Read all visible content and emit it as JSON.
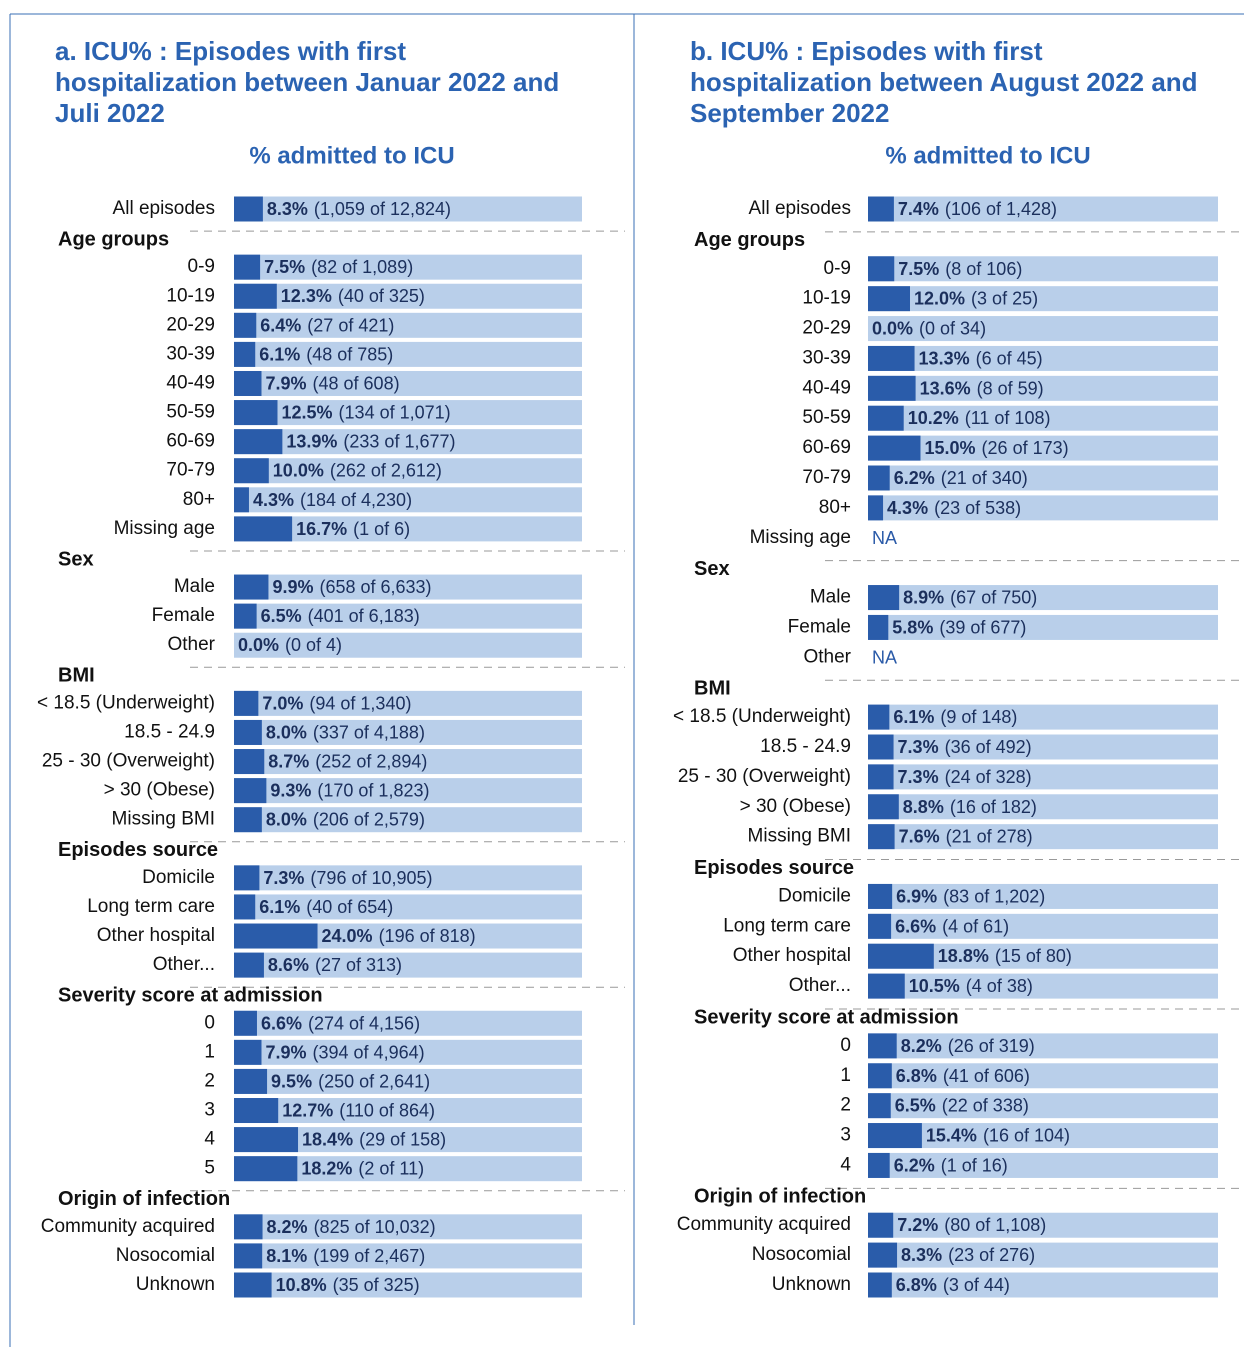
{
  "chart_data": [
    {
      "type": "bar",
      "title": "a. ICU% : Episodes with first hospitalization between Januar 2022 and Juli 2022",
      "axis_label": "% admitted to  ICU",
      "xlim": [
        0,
        100
      ],
      "color": "#2a5caa",
      "track_color": "#b9cfea",
      "groups": [
        {
          "categories": [
            "All episodes"
          ],
          "values": [
            8.3
          ],
          "value_labels": [
            "8.3%"
          ],
          "counts": [
            "(1,059 of 12,824)"
          ]
        },
        {
          "name": "Age groups",
          "categories": [
            "0-9",
            "10-19",
            "20-29",
            "30-39",
            "40-49",
            "50-59",
            "60-69",
            "70-79",
            "80+",
            "Missing age"
          ],
          "values": [
            7.5,
            12.3,
            6.4,
            6.1,
            7.9,
            12.5,
            13.9,
            10.0,
            4.3,
            16.7
          ],
          "value_labels": [
            "7.5%",
            "12.3%",
            "6.4%",
            "6.1%",
            "7.9%",
            "12.5%",
            "13.9%",
            "10.0%",
            "4.3%",
            "16.7%"
          ],
          "counts": [
            "(82 of 1,089)",
            "(40 of 325)",
            "(27 of 421)",
            "(48 of 785)",
            "(48 of 608)",
            "(134 of 1,071)",
            "(233 of 1,677)",
            "(262 of 2,612)",
            "(184 of 4,230)",
            "(1 of 6)"
          ]
        },
        {
          "name": "Sex",
          "categories": [
            "Male",
            "Female",
            "Other"
          ],
          "values": [
            9.9,
            6.5,
            0.0
          ],
          "value_labels": [
            "9.9%",
            "6.5%",
            "0.0%"
          ],
          "counts": [
            "(658 of 6,633)",
            "(401 of 6,183)",
            "(0 of 4)"
          ]
        },
        {
          "name": "BMI",
          "categories": [
            "< 18.5 (Underweight)",
            "18.5 - 24.9",
            "25 - 30 (Overweight)",
            "> 30 (Obese)",
            "Missing BMI"
          ],
          "values": [
            7.0,
            8.0,
            8.7,
            9.3,
            8.0
          ],
          "value_labels": [
            "7.0%",
            "8.0%",
            "8.7%",
            "9.3%",
            "8.0%"
          ],
          "counts": [
            "(94 of 1,340)",
            "(337 of 4,188)",
            "(252 of 2,894)",
            "(170 of 1,823)",
            "(206 of 2,579)"
          ]
        },
        {
          "name": "Episodes source",
          "categories": [
            "Domicile",
            "Long term care",
            "Other hospital",
            "Other..."
          ],
          "values": [
            7.3,
            6.1,
            24.0,
            8.6
          ],
          "value_labels": [
            "7.3%",
            "6.1%",
            "24.0%",
            "8.6%"
          ],
          "counts": [
            "(796 of 10,905)",
            "(40 of 654)",
            "(196 of 818)",
            "(27 of 313)"
          ]
        },
        {
          "name": "Severity score at admission",
          "categories": [
            "0",
            "1",
            "2",
            "3",
            "4",
            "5"
          ],
          "values": [
            6.6,
            7.9,
            9.5,
            12.7,
            18.4,
            18.2
          ],
          "value_labels": [
            "6.6%",
            "7.9%",
            "9.5%",
            "12.7%",
            "18.4%",
            "18.2%"
          ],
          "counts": [
            "(274 of 4,156)",
            "(394 of 4,964)",
            "(250 of 2,641)",
            "(110 of 864)",
            "(29 of 158)",
            "(2 of 11)"
          ]
        },
        {
          "name": "Origin of infection",
          "categories": [
            "Community acquired",
            "Nosocomial",
            "Unknown"
          ],
          "values": [
            8.2,
            8.1,
            10.8
          ],
          "value_labels": [
            "8.2%",
            "8.1%",
            "10.8%"
          ],
          "counts": [
            "(825 of 10,032)",
            "(199 of 2,467)",
            "(35 of 325)"
          ]
        }
      ]
    },
    {
      "type": "bar",
      "title": "b. ICU% : Episodes with first hospitalization between August 2022 and September 2022",
      "axis_label": "% admitted to  ICU",
      "xlim": [
        0,
        100
      ],
      "color": "#2a5caa",
      "track_color": "#b9cfea",
      "groups": [
        {
          "categories": [
            "All episodes"
          ],
          "values": [
            7.4
          ],
          "value_labels": [
            "7.4%"
          ],
          "counts": [
            "(106 of 1,428)"
          ]
        },
        {
          "name": "Age groups",
          "categories": [
            "0-9",
            "10-19",
            "20-29",
            "30-39",
            "40-49",
            "50-59",
            "60-69",
            "70-79",
            "80+",
            "Missing age"
          ],
          "values": [
            7.5,
            12.0,
            0.0,
            13.3,
            13.6,
            10.2,
            15.0,
            6.2,
            4.3,
            null
          ],
          "value_labels": [
            "7.5%",
            "12.0%",
            "0.0%",
            "13.3%",
            "13.6%",
            "10.2%",
            "15.0%",
            "6.2%",
            "4.3%",
            "NA"
          ],
          "counts": [
            "(8 of 106)",
            "(3 of 25)",
            "(0 of 34)",
            "(6 of 45)",
            "(8 of 59)",
            "(11 of 108)",
            "(26 of 173)",
            "(21 of 340)",
            "(23 of 538)",
            null
          ]
        },
        {
          "name": "Sex",
          "categories": [
            "Male",
            "Female",
            "Other"
          ],
          "values": [
            8.9,
            5.8,
            null
          ],
          "value_labels": [
            "8.9%",
            "5.8%",
            "NA"
          ],
          "counts": [
            "(67 of 750)",
            "(39 of 677)",
            null
          ]
        },
        {
          "name": "BMI",
          "categories": [
            "< 18.5 (Underweight)",
            "18.5 - 24.9",
            "25 - 30 (Overweight)",
            "> 30 (Obese)",
            "Missing BMI"
          ],
          "values": [
            6.1,
            7.3,
            7.3,
            8.8,
            7.6
          ],
          "value_labels": [
            "6.1%",
            "7.3%",
            "7.3%",
            "8.8%",
            "7.6%"
          ],
          "counts": [
            "(9 of 148)",
            "(36 of 492)",
            "(24 of 328)",
            "(16 of 182)",
            "(21 of 278)"
          ]
        },
        {
          "name": "Episodes source",
          "categories": [
            "Domicile",
            "Long term care",
            "Other hospital",
            "Other..."
          ],
          "values": [
            6.9,
            6.6,
            18.8,
            10.5
          ],
          "value_labels": [
            "6.9%",
            "6.6%",
            "18.8%",
            "10.5%"
          ],
          "counts": [
            "(83 of 1,202)",
            "(4 of 61)",
            "(15 of 80)",
            "(4 of 38)"
          ]
        },
        {
          "name": "Severity score at admission",
          "categories": [
            "0",
            "1",
            "2",
            "3",
            "4"
          ],
          "values": [
            8.2,
            6.8,
            6.5,
            15.4,
            6.2
          ],
          "value_labels": [
            "8.2%",
            "6.8%",
            "6.5%",
            "15.4%",
            "6.2%"
          ],
          "counts": [
            "(26 of 319)",
            "(41 of 606)",
            "(22 of 338)",
            "(16 of 104)",
            "(1 of 16)"
          ]
        },
        {
          "name": "Origin of infection",
          "categories": [
            "Community acquired",
            "Nosocomial",
            "Unknown"
          ],
          "values": [
            7.2,
            8.3,
            6.8
          ],
          "value_labels": [
            "7.2%",
            "8.3%",
            "6.8%"
          ],
          "counts": [
            "(80 of 1,108)",
            "(23 of 276)",
            "(3 of 44)"
          ]
        }
      ]
    }
  ]
}
